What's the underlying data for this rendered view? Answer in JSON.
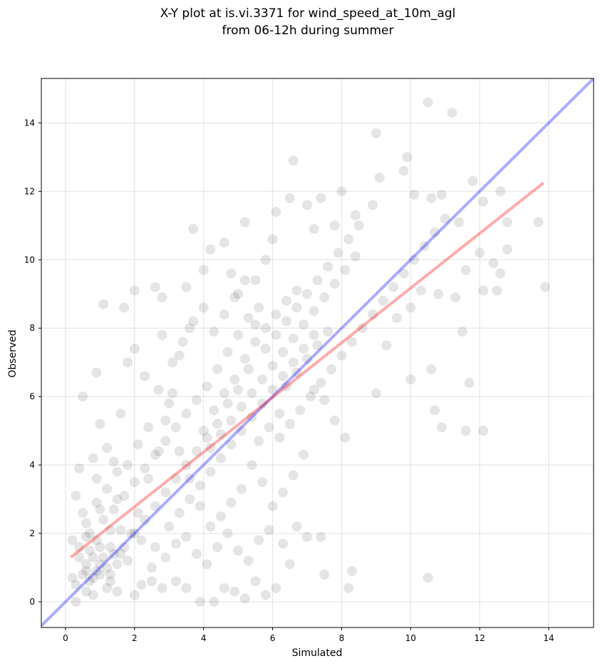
{
  "chart_data": {
    "type": "scatter",
    "title": "X-Y plot at is.vi.3371 for wind_speed_at_10m_agl",
    "subtitle": "from 06-12h during summer",
    "xlabel": "Simulated",
    "ylabel": "Observed",
    "xlim": [
      -0.7,
      15.3
    ],
    "ylim": [
      -0.75,
      15.3
    ],
    "xticks": [
      0,
      2,
      4,
      6,
      8,
      10,
      12,
      14
    ],
    "yticks": [
      0,
      2,
      4,
      6,
      8,
      10,
      12,
      14
    ],
    "grid": true,
    "point_color": "#000000",
    "point_alpha": 0.1,
    "series": [
      {
        "points": [
          [
            0.5,
            0.8
          ],
          [
            0.6,
            1.1
          ],
          [
            0.7,
            0.6
          ],
          [
            0.8,
            1.3
          ],
          [
            0.9,
            0.9
          ],
          [
            1.0,
            1.6
          ],
          [
            0.4,
            1.3
          ],
          [
            0.7,
            2.0
          ],
          [
            1.1,
            2.4
          ],
          [
            0.3,
            0.5
          ],
          [
            0.6,
            0.3
          ],
          [
            1.3,
            0.8
          ],
          [
            0.2,
            1.8
          ],
          [
            0.5,
            2.6
          ],
          [
            0.9,
            2.9
          ],
          [
            1.2,
            3.3
          ],
          [
            0.4,
            3.9
          ],
          [
            0.8,
            4.2
          ],
          [
            1.0,
            5.2
          ],
          [
            0.5,
            6.0
          ],
          [
            0.9,
            6.7
          ],
          [
            1.1,
            8.7
          ],
          [
            1.6,
            5.5
          ],
          [
            1.8,
            7.0
          ],
          [
            2.0,
            9.1
          ],
          [
            1.7,
            8.6
          ],
          [
            2.3,
            6.6
          ],
          [
            2.6,
            9.2
          ],
          [
            2.8,
            8.9
          ],
          [
            2.0,
            7.4
          ],
          [
            1.4,
            4.1
          ],
          [
            1.5,
            3.0
          ],
          [
            1.6,
            2.1
          ],
          [
            1.3,
            1.6
          ],
          [
            1.8,
            1.2
          ],
          [
            2.2,
            0.5
          ],
          [
            2.5,
            1.0
          ],
          [
            2.1,
            2.6
          ],
          [
            2.4,
            3.6
          ],
          [
            2.7,
            4.4
          ],
          [
            2.9,
            5.3
          ],
          [
            3.1,
            6.1
          ],
          [
            3.3,
            7.2
          ],
          [
            3.6,
            8.0
          ],
          [
            3.5,
            9.2
          ],
          [
            3.7,
            10.9
          ],
          [
            4.0,
            9.7
          ],
          [
            4.2,
            10.3
          ],
          [
            4.6,
            10.5
          ],
          [
            4.8,
            9.6
          ],
          [
            5.0,
            9.0
          ],
          [
            5.2,
            11.1
          ],
          [
            5.5,
            9.4
          ],
          [
            5.8,
            10.0
          ],
          [
            6.0,
            10.6
          ],
          [
            6.1,
            11.4
          ],
          [
            6.5,
            11.8
          ],
          [
            6.6,
            12.9
          ],
          [
            7.0,
            11.6
          ],
          [
            7.4,
            11.8
          ],
          [
            7.2,
            10.9
          ],
          [
            7.8,
            11.0
          ],
          [
            8.0,
            12.0
          ],
          [
            8.4,
            11.3
          ],
          [
            8.9,
            11.6
          ],
          [
            9.1,
            12.4
          ],
          [
            9.0,
            13.7
          ],
          [
            9.8,
            12.6
          ],
          [
            9.9,
            13.0
          ],
          [
            10.5,
            14.6
          ],
          [
            11.2,
            14.3
          ],
          [
            10.1,
            11.9
          ],
          [
            10.6,
            11.8
          ],
          [
            10.9,
            11.9
          ],
          [
            11.4,
            11.1
          ],
          [
            11.8,
            12.3
          ],
          [
            12.1,
            11.7
          ],
          [
            12.6,
            12.0
          ],
          [
            12.8,
            11.1
          ],
          [
            13.7,
            11.1
          ],
          [
            13.9,
            9.2
          ],
          [
            12.5,
            9.1
          ],
          [
            12.1,
            9.1
          ],
          [
            12.1,
            5.0
          ],
          [
            11.6,
            5.0
          ],
          [
            10.9,
            5.1
          ],
          [
            10.7,
            5.6
          ],
          [
            11.7,
            6.4
          ],
          [
            10.6,
            6.8
          ],
          [
            10.0,
            6.5
          ],
          [
            10.5,
            0.7
          ],
          [
            8.2,
            0.4
          ],
          [
            8.3,
            0.9
          ],
          [
            7.5,
            0.8
          ],
          [
            7.4,
            1.9
          ],
          [
            7.0,
            1.9
          ],
          [
            6.5,
            1.1
          ],
          [
            6.1,
            0.4
          ],
          [
            5.8,
            0.2
          ],
          [
            5.5,
            0.6
          ],
          [
            5.2,
            0.1
          ],
          [
            4.9,
            0.3
          ],
          [
            4.6,
            0.4
          ],
          [
            4.3,
            0.0
          ],
          [
            3.9,
            0.0
          ],
          [
            3.5,
            0.4
          ],
          [
            3.2,
            0.6
          ],
          [
            2.8,
            0.4
          ],
          [
            2.5,
            0.6
          ],
          [
            2.0,
            0.2
          ],
          [
            1.5,
            0.3
          ],
          [
            1.2,
            0.4
          ],
          [
            0.8,
            0.2
          ],
          [
            0.3,
            0.0
          ],
          [
            0.2,
            0.7
          ],
          [
            0.4,
            1.6
          ],
          [
            0.6,
            1.9
          ],
          [
            1.0,
            0.8
          ],
          [
            1.2,
            1.0
          ],
          [
            1.4,
            1.4
          ],
          [
            1.0,
            1.1
          ],
          [
            0.8,
            0.7
          ],
          [
            0.7,
            1.5
          ],
          [
            0.9,
            1.8
          ],
          [
            1.1,
            1.3
          ],
          [
            0.6,
            0.9
          ],
          [
            1.3,
            0.6
          ],
          [
            1.5,
            1.1
          ],
          [
            1.7,
            1.6
          ],
          [
            1.9,
            2.0
          ],
          [
            2.2,
            1.8
          ],
          [
            2.6,
            1.6
          ],
          [
            2.9,
            1.3
          ],
          [
            3.2,
            1.7
          ],
          [
            3.5,
            1.9
          ],
          [
            3.8,
            1.4
          ],
          [
            4.1,
            1.1
          ],
          [
            4.4,
            1.6
          ],
          [
            4.7,
            2.0
          ],
          [
            5.0,
            1.5
          ],
          [
            5.3,
            1.2
          ],
          [
            5.6,
            1.8
          ],
          [
            5.9,
            2.1
          ],
          [
            6.3,
            1.7
          ],
          [
            6.7,
            2.2
          ],
          [
            3.0,
            2.2
          ],
          [
            3.3,
            2.6
          ],
          [
            3.6,
            3.0
          ],
          [
            3.9,
            3.4
          ],
          [
            4.2,
            3.8
          ],
          [
            4.5,
            4.2
          ],
          [
            4.8,
            4.6
          ],
          [
            5.1,
            5.0
          ],
          [
            5.4,
            5.4
          ],
          [
            5.7,
            5.8
          ],
          [
            6.0,
            6.2
          ],
          [
            6.3,
            6.6
          ],
          [
            6.6,
            7.0
          ],
          [
            6.9,
            7.4
          ],
          [
            7.2,
            7.8
          ],
          [
            4.0,
            5.0
          ],
          [
            4.3,
            5.6
          ],
          [
            4.6,
            6.1
          ],
          [
            4.9,
            6.5
          ],
          [
            5.2,
            7.1
          ],
          [
            5.5,
            7.6
          ],
          [
            5.8,
            8.0
          ],
          [
            6.1,
            8.4
          ],
          [
            6.4,
            8.8
          ],
          [
            6.7,
            9.1
          ],
          [
            4.1,
            6.3
          ],
          [
            4.4,
            6.8
          ],
          [
            4.7,
            7.3
          ],
          [
            5.0,
            7.8
          ],
          [
            5.3,
            8.3
          ],
          [
            5.6,
            8.6
          ],
          [
            3.8,
            5.9
          ],
          [
            3.5,
            5.5
          ],
          [
            3.2,
            5.1
          ],
          [
            2.9,
            4.7
          ],
          [
            2.6,
            4.3
          ],
          [
            2.3,
            3.9
          ],
          [
            2.0,
            3.5
          ],
          [
            1.7,
            3.1
          ],
          [
            1.4,
            2.7
          ],
          [
            4.2,
            4.5
          ],
          [
            4.5,
            4.9
          ],
          [
            4.8,
            5.3
          ],
          [
            5.1,
            5.7
          ],
          [
            5.4,
            6.1
          ],
          [
            5.7,
            6.5
          ],
          [
            6.0,
            6.9
          ],
          [
            6.3,
            7.3
          ],
          [
            6.6,
            7.7
          ],
          [
            6.9,
            8.1
          ],
          [
            7.2,
            8.5
          ],
          [
            7.5,
            8.9
          ],
          [
            7.8,
            9.3
          ],
          [
            8.1,
            9.7
          ],
          [
            8.4,
            10.1
          ],
          [
            6.2,
            4.8
          ],
          [
            6.5,
            5.2
          ],
          [
            6.8,
            5.6
          ],
          [
            7.1,
            6.0
          ],
          [
            7.4,
            6.4
          ],
          [
            7.7,
            6.8
          ],
          [
            8.0,
            7.2
          ],
          [
            8.3,
            7.6
          ],
          [
            8.6,
            8.0
          ],
          [
            8.9,
            8.4
          ],
          [
            9.2,
            8.8
          ],
          [
            9.5,
            9.2
          ],
          [
            9.8,
            9.6
          ],
          [
            10.1,
            10.0
          ],
          [
            10.4,
            10.4
          ],
          [
            10.7,
            10.8
          ],
          [
            11.0,
            11.2
          ],
          [
            9.0,
            6.1
          ],
          [
            9.3,
            7.5
          ],
          [
            9.6,
            8.3
          ],
          [
            10.0,
            8.6
          ],
          [
            10.3,
            9.1
          ],
          [
            10.8,
            9.0
          ],
          [
            11.3,
            8.9
          ],
          [
            11.6,
            9.7
          ],
          [
            12.0,
            10.2
          ],
          [
            12.4,
            9.9
          ],
          [
            12.6,
            9.6
          ],
          [
            12.8,
            10.3
          ],
          [
            11.5,
            7.9
          ],
          [
            8.1,
            4.8
          ],
          [
            7.8,
            5.3
          ],
          [
            7.5,
            5.9
          ],
          [
            7.2,
            6.2
          ],
          [
            6.9,
            4.3
          ],
          [
            6.6,
            3.7
          ],
          [
            6.3,
            3.2
          ],
          [
            6.0,
            2.8
          ],
          [
            5.7,
            3.5
          ],
          [
            5.4,
            4.0
          ],
          [
            5.1,
            3.3
          ],
          [
            4.8,
            2.9
          ],
          [
            4.5,
            2.5
          ],
          [
            4.2,
            2.2
          ],
          [
            3.9,
            2.8
          ],
          [
            3.6,
            3.6
          ],
          [
            3.3,
            4.4
          ],
          [
            3.0,
            5.8
          ],
          [
            2.7,
            6.2
          ],
          [
            2.4,
            5.1
          ],
          [
            2.1,
            4.6
          ],
          [
            1.8,
            4.0
          ],
          [
            1.5,
            3.8
          ],
          [
            1.2,
            4.5
          ],
          [
            0.9,
            3.6
          ],
          [
            0.6,
            2.3
          ],
          [
            0.3,
            3.1
          ],
          [
            1.0,
            2.7
          ],
          [
            1.3,
            2.1
          ],
          [
            1.6,
            1.4
          ],
          [
            5.6,
            4.7
          ],
          [
            5.9,
            5.1
          ],
          [
            6.2,
            5.5
          ],
          [
            5.3,
            6.8
          ],
          [
            5.0,
            6.2
          ],
          [
            4.7,
            5.8
          ],
          [
            4.4,
            5.2
          ],
          [
            4.1,
            4.8
          ],
          [
            3.8,
            4.4
          ],
          [
            3.5,
            4.0
          ],
          [
            3.2,
            3.6
          ],
          [
            2.9,
            3.2
          ],
          [
            2.6,
            2.8
          ],
          [
            2.3,
            2.4
          ],
          [
            2.0,
            2.0
          ],
          [
            6.4,
            6.3
          ],
          [
            6.7,
            6.7
          ],
          [
            7.0,
            7.1
          ],
          [
            7.3,
            7.5
          ],
          [
            7.6,
            7.9
          ],
          [
            4.3,
            7.9
          ],
          [
            4.6,
            8.4
          ],
          [
            4.9,
            8.9
          ],
          [
            5.2,
            9.4
          ],
          [
            5.5,
            8.1
          ],
          [
            5.8,
            7.4
          ],
          [
            6.1,
            7.8
          ],
          [
            6.4,
            8.2
          ],
          [
            6.7,
            8.6
          ],
          [
            7.0,
            9.0
          ],
          [
            7.3,
            9.4
          ],
          [
            7.6,
            9.8
          ],
          [
            7.9,
            10.2
          ],
          [
            8.2,
            10.6
          ],
          [
            8.5,
            11.0
          ],
          [
            3.4,
            7.6
          ],
          [
            3.7,
            8.2
          ],
          [
            4.0,
            8.6
          ],
          [
            3.1,
            7.0
          ],
          [
            2.8,
            7.8
          ]
        ]
      }
    ],
    "lines": [
      {
        "name": "",
        "color": "#0000ff",
        "alpha": 0.33,
        "x": [
          -0.7,
          15.3
        ],
        "y": [
          -0.7,
          15.3
        ]
      },
      {
        "name": "",
        "color": "#ff0000",
        "alpha": 0.33,
        "x": [
          0.15,
          13.85
        ],
        "y": [
          1.3,
          12.25
        ]
      }
    ]
  }
}
